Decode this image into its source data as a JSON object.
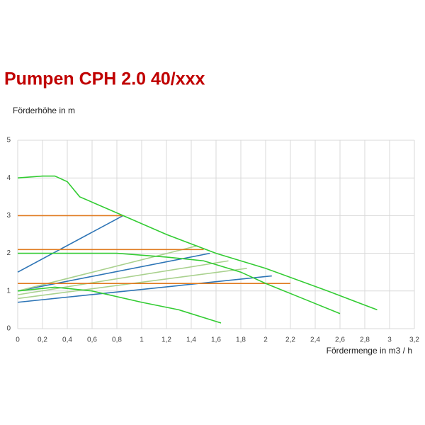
{
  "chart_data": {
    "type": "line",
    "title": "Pumpen CPH 2.0 40/xxx",
    "y_label": "Förderhöhe in m",
    "x_label": "Fördermenge in m3 / h",
    "xlim": [
      0,
      3.2
    ],
    "ylim": [
      0,
      5
    ],
    "grid": true,
    "xticks": [
      0,
      {
        "value": 0.2,
        "label": "0,2"
      },
      {
        "value": 0.4,
        "label": "0,4"
      },
      {
        "value": 0.6,
        "label": "0,6"
      },
      {
        "value": 0.8,
        "label": "0,8"
      },
      1,
      {
        "value": 1.2,
        "label": "1,2"
      },
      {
        "value": 1.4,
        "label": "1,4"
      },
      {
        "value": 1.6,
        "label": "1,6"
      },
      {
        "value": 1.8,
        "label": "1,8"
      },
      2,
      {
        "value": 2.2,
        "label": "2,2"
      },
      {
        "value": 2.4,
        "label": "2,4"
      },
      {
        "value": 2.6,
        "label": "2,6"
      },
      {
        "value": 2.8,
        "label": "2,8"
      },
      3,
      {
        "value": 3.2,
        "label": "3,2"
      }
    ],
    "yticks": [
      0,
      1,
      2,
      3,
      4,
      5
    ],
    "series": [
      {
        "color": "#2e75b6",
        "x": [
          0,
          0.85
        ],
        "values": [
          1.5,
          3.0
        ]
      },
      {
        "color": "#2e75b6",
        "x": [
          0,
          1.55
        ],
        "values": [
          1.0,
          2.0
        ]
      },
      {
        "color": "#2e75b6",
        "x": [
          0,
          2.05
        ],
        "values": [
          0.7,
          1.4
        ]
      },
      {
        "color": "#a9d18e",
        "x": [
          0,
          1.45
        ],
        "values": [
          1.0,
          2.2
        ]
      },
      {
        "color": "#a9d18e",
        "x": [
          0,
          1.7
        ],
        "values": [
          0.9,
          1.8
        ]
      },
      {
        "color": "#a9d18e",
        "x": [
          0,
          1.85
        ],
        "values": [
          0.8,
          1.6
        ]
      },
      {
        "color": "#e07b20",
        "x": [
          0,
          0.85
        ],
        "values": [
          3.0,
          3.0
        ]
      },
      {
        "color": "#e07b20",
        "x": [
          0,
          1.5
        ],
        "values": [
          2.1,
          2.1
        ]
      },
      {
        "color": "#e07b20",
        "x": [
          0,
          2.2
        ],
        "values": [
          1.2,
          1.2
        ]
      },
      {
        "color": "#33cc33",
        "x": [
          0,
          0.2,
          0.3,
          0.4,
          0.5,
          0.85,
          1.2,
          1.6,
          2.0,
          2.5,
          2.9
        ],
        "values": [
          4.0,
          4.05,
          4.05,
          3.9,
          3.5,
          3.0,
          2.5,
          2.0,
          1.6,
          1.0,
          0.5
        ]
      },
      {
        "color": "#33cc33",
        "x": [
          0,
          0.8,
          1.2,
          1.5,
          1.8,
          2.0,
          2.3,
          2.6
        ],
        "values": [
          2.0,
          2.0,
          1.9,
          1.8,
          1.5,
          1.2,
          0.8,
          0.4
        ]
      },
      {
        "color": "#33cc33",
        "x": [
          0,
          0.3,
          0.6,
          1.0,
          1.3,
          1.64
        ],
        "values": [
          1.0,
          1.1,
          1.0,
          0.7,
          0.5,
          0.15
        ]
      }
    ]
  }
}
